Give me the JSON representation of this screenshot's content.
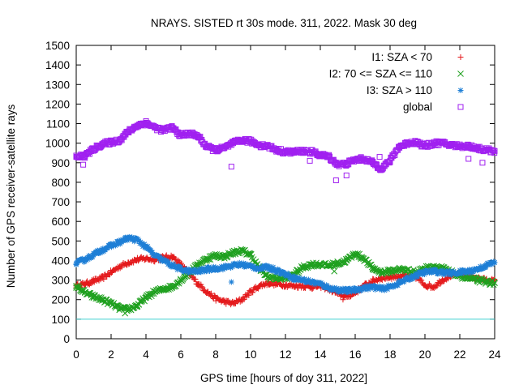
{
  "chart_data": {
    "type": "scatter",
    "title": "NRAYS. SISTED rt 30s mode. 311, 2022. Mask 30 deg",
    "xlabel": "GPS time [hours of doy 311, 2022]",
    "ylabel": "Number of GPS receiver-satellite rays",
    "xlim": [
      0,
      24
    ],
    "ylim": [
      0,
      1500
    ],
    "x_ticks": [
      "0",
      "2",
      "4",
      "6",
      "8",
      "10",
      "12",
      "14",
      "16",
      "18",
      "20",
      "22",
      "24"
    ],
    "y_ticks": [
      "0",
      "100",
      "200",
      "300",
      "400",
      "500",
      "600",
      "700",
      "800",
      "900",
      "1000",
      "1100",
      "1200",
      "1300",
      "1400",
      "1500"
    ],
    "reference_line": {
      "y": 100,
      "color": "#40d0d0"
    },
    "legend_position": "top-right",
    "series": [
      {
        "name": "I1: SZA < 70",
        "marker": "+",
        "color": "#e41a1c",
        "x": [
          0,
          0.5,
          1,
          1.5,
          2,
          2.5,
          3,
          3.5,
          4,
          4.5,
          5,
          5.5,
          6,
          6.5,
          7,
          7.5,
          8,
          8.5,
          9,
          9.5,
          10,
          10.5,
          11,
          11.5,
          12,
          12.5,
          13,
          13.5,
          14,
          14.5,
          15,
          15.5,
          16,
          16.5,
          17,
          17.5,
          18,
          18.5,
          19,
          19.5,
          20,
          20.5,
          21,
          21.5,
          22,
          22.5,
          23,
          23.5,
          24
        ],
        "y": [
          270,
          280,
          295,
          310,
          340,
          370,
          390,
          405,
          410,
          405,
          415,
          420,
          380,
          330,
          280,
          240,
          205,
          190,
          180,
          200,
          240,
          270,
          285,
          280,
          275,
          270,
          270,
          265,
          270,
          255,
          230,
          215,
          235,
          270,
          295,
          310,
          315,
          320,
          320,
          315,
          275,
          265,
          300,
          325,
          330,
          320,
          310,
          300,
          295
        ]
      },
      {
        "name": "I2: 70 <= SZA <= 110",
        "marker": "x",
        "color": "#1fa01f",
        "x": [
          0,
          0.5,
          1,
          1.5,
          2,
          2.5,
          3,
          3.5,
          4,
          4.5,
          5,
          5.5,
          6,
          6.5,
          7,
          7.5,
          8,
          8.5,
          9,
          9.5,
          10,
          10.5,
          11,
          11.5,
          12,
          12.5,
          13,
          13.5,
          14,
          14.5,
          15,
          15.5,
          16,
          16.5,
          17,
          17.5,
          18,
          18.5,
          19,
          19.5,
          20,
          20.5,
          21,
          21.5,
          22,
          22.5,
          23,
          23.5,
          24
        ],
        "y": [
          270,
          235,
          215,
          200,
          180,
          155,
          150,
          170,
          210,
          240,
          255,
          265,
          300,
          340,
          380,
          410,
          425,
          420,
          440,
          450,
          430,
          360,
          315,
          310,
          310,
          330,
          365,
          380,
          380,
          375,
          385,
          400,
          435,
          410,
          360,
          340,
          345,
          355,
          350,
          340,
          360,
          370,
          360,
          340,
          320,
          310,
          300,
          290,
          285
        ]
      },
      {
        "name": "I3: SZA > 110",
        "marker": "*",
        "color": "#1e7fd6",
        "x": [
          0,
          0.5,
          1,
          1.5,
          2,
          2.5,
          3,
          3.5,
          4,
          4.5,
          5,
          5.5,
          6,
          6.5,
          7,
          7.5,
          8,
          8.5,
          9,
          9.5,
          10,
          10.5,
          11,
          11.5,
          12,
          12.5,
          13,
          13.5,
          14,
          14.5,
          15,
          15.5,
          16,
          16.5,
          17,
          17.5,
          18,
          18.5,
          19,
          19.5,
          20,
          20.5,
          21,
          21.5,
          22,
          22.5,
          23,
          23.5,
          24
        ],
        "y": [
          385,
          405,
          430,
          455,
          475,
          495,
          515,
          505,
          470,
          425,
          400,
          375,
          355,
          345,
          345,
          355,
          360,
          365,
          375,
          380,
          370,
          360,
          365,
          350,
          330,
          310,
          300,
          290,
          280,
          260,
          250,
          245,
          250,
          260,
          265,
          255,
          265,
          285,
          305,
          325,
          340,
          345,
          340,
          335,
          340,
          345,
          355,
          375,
          390
        ]
      },
      {
        "name": "global",
        "marker": "square",
        "color": "#a020f0",
        "x": [
          0,
          0.5,
          1,
          1.5,
          2,
          2.5,
          3,
          3.5,
          4,
          4.5,
          5,
          5.5,
          6,
          6.5,
          7,
          7.5,
          8,
          8.5,
          9,
          9.5,
          10,
          10.5,
          11,
          11.5,
          12,
          12.5,
          13,
          13.5,
          14,
          14.5,
          15,
          15.5,
          16,
          16.5,
          17,
          17.5,
          18,
          18.5,
          19,
          19.5,
          20,
          20.5,
          21,
          21.5,
          22,
          22.5,
          23,
          23.5,
          24
        ],
        "y": [
          930,
          935,
          970,
          995,
          1005,
          1015,
          1060,
          1090,
          1105,
          1080,
          1065,
          1080,
          1040,
          1050,
          1035,
          980,
          965,
          975,
          1000,
          1015,
          1010,
          990,
          985,
          965,
          955,
          955,
          960,
          955,
          940,
          930,
          890,
          895,
          915,
          920,
          900,
          870,
          910,
          980,
          1000,
          1005,
          985,
          1000,
          1000,
          990,
          985,
          985,
          975,
          965,
          960
        ]
      }
    ],
    "outliers": {
      "I1: SZA < 70": [
        [
          0.3,
          280
        ],
        [
          15.3,
          200
        ]
      ],
      "I2: 70 <= SZA <= 110": [
        [
          2.8,
          130
        ],
        [
          14.8,
          345
        ]
      ],
      "I3: SZA > 110": [
        [
          8.9,
          290
        ]
      ],
      "global": [
        [
          0.4,
          890
        ],
        [
          8.9,
          880
        ],
        [
          14.9,
          810
        ],
        [
          15.5,
          835
        ],
        [
          13.4,
          910
        ],
        [
          22.5,
          920
        ],
        [
          23.3,
          900
        ],
        [
          17.4,
          930
        ]
      ]
    }
  }
}
